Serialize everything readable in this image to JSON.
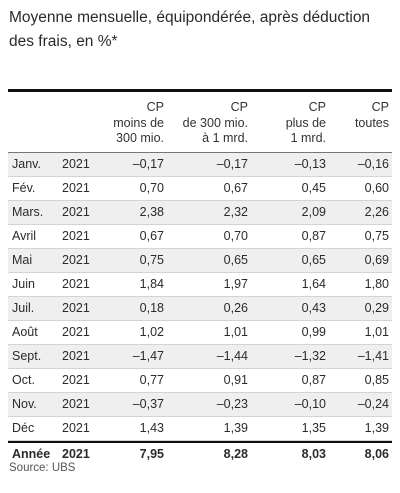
{
  "title": "Moyenne mensuelle, équipondérée, après déduction des frais, en %*",
  "columns": [
    "CP\nmoins de\n300 mio.",
    "CP\nde 300 mio.\nà 1 mrd.",
    "CP\nplus de\n1 mrd.",
    "CP\ntoutes"
  ],
  "rows": [
    {
      "month": "Janv.",
      "year": "2021",
      "v": [
        "–0,17",
        "–0,17",
        "–0,13",
        "–0,16"
      ]
    },
    {
      "month": "Fév.",
      "year": "2021",
      "v": [
        "0,70",
        "0,67",
        "0,45",
        "0,60"
      ]
    },
    {
      "month": "Mars.",
      "year": "2021",
      "v": [
        "2,38",
        "2,32",
        "2,09",
        "2,26"
      ]
    },
    {
      "month": "Avril",
      "year": "2021",
      "v": [
        "0,67",
        "0,70",
        "0,87",
        "0,75"
      ]
    },
    {
      "month": "Mai",
      "year": "2021",
      "v": [
        "0,75",
        "0,65",
        "0,65",
        "0,69"
      ]
    },
    {
      "month": "Juin",
      "year": "2021",
      "v": [
        "1,84",
        "1,97",
        "1,64",
        "1,80"
      ]
    },
    {
      "month": "Juil.",
      "year": "2021",
      "v": [
        "0,18",
        "0,26",
        "0,43",
        "0,29"
      ]
    },
    {
      "month": "Août",
      "year": "2021",
      "v": [
        "1,02",
        "1,01",
        "0,99",
        "1,01"
      ]
    },
    {
      "month": "Sept.",
      "year": "2021",
      "v": [
        "–1,47",
        "–1,44",
        "–1,32",
        "–1,41"
      ]
    },
    {
      "month": "Oct.",
      "year": "2021",
      "v": [
        "0,77",
        "0,91",
        "0,87",
        "0,85"
      ]
    },
    {
      "month": "Nov.",
      "year": "2021",
      "v": [
        "–0,37",
        "–0,23",
        "–0,10",
        "–0,24"
      ]
    },
    {
      "month": "Déc",
      "year": "2021",
      "v": [
        "1,43",
        "1,39",
        "1,35",
        "1,39"
      ]
    }
  ],
  "total": {
    "month": "Année",
    "year": "2021",
    "v": [
      "7,95",
      "8,28",
      "8,03",
      "8,06"
    ]
  },
  "source": "Source: UBS"
}
